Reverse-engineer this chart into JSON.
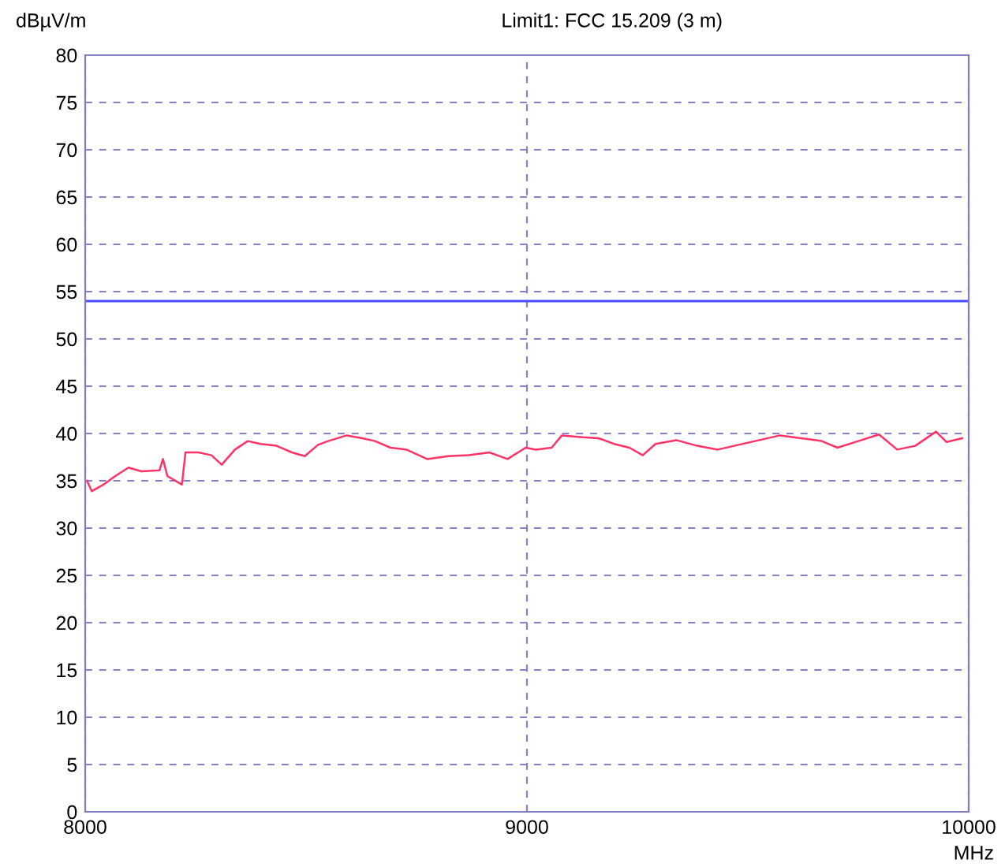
{
  "chart_data": {
    "type": "line",
    "xlabel": "MHz",
    "ylabel": "dBµV/m",
    "annotations": [
      "Limit1: FCC 15.209 (3 m)"
    ],
    "xlim": [
      8000,
      10000
    ],
    "xticks": [
      8000,
      9000,
      10000
    ],
    "ylim": [
      0,
      80
    ],
    "yticks": [
      0,
      5,
      10,
      15,
      20,
      25,
      30,
      35,
      40,
      45,
      50,
      55,
      60,
      65,
      70,
      75,
      80
    ],
    "grid": true,
    "line_style": "solid",
    "marker": "none",
    "ref_lines": [
      {
        "axis": "y",
        "value": 54,
        "color": "#4a4aff",
        "line_style": "solid"
      }
    ],
    "series": [
      {
        "color": "#ff3366",
        "x": [
          8004,
          8015,
          8045,
          8068,
          8098,
          8127,
          8168,
          8176,
          8186,
          8219,
          8227,
          8256,
          8286,
          8309,
          8339,
          8368,
          8397,
          8433,
          8468,
          8497,
          8527,
          8550,
          8592,
          8627,
          8656,
          8691,
          8727,
          8774,
          8821,
          8868,
          8915,
          8956,
          8997,
          9020,
          9056,
          9079,
          9126,
          9162,
          9197,
          9232,
          9262,
          9291,
          9338,
          9385,
          9432,
          9479,
          9526,
          9573,
          9620,
          9667,
          9703,
          9750,
          9797,
          9838,
          9879,
          9926,
          9950,
          9985
        ],
        "values": [
          35,
          33.9,
          34.7,
          35.5,
          36.4,
          36,
          36.1,
          37.3,
          35.5,
          34.6,
          38,
          38,
          37.7,
          36.7,
          38.3,
          39.2,
          38.9,
          38.7,
          38,
          37.6,
          38.8,
          39.2,
          39.8,
          39.5,
          39.2,
          38.5,
          38.3,
          37.3,
          37.6,
          37.7,
          38,
          37.3,
          38.5,
          38.3,
          38.5,
          39.8,
          39.6,
          39.5,
          38.9,
          38.5,
          37.7,
          38.9,
          39.3,
          38.7,
          38.3,
          38.8,
          39.3,
          39.8,
          39.5,
          39.2,
          38.5,
          39.2,
          39.9,
          38.3,
          38.7,
          40.2,
          39.1,
          39.5
        ]
      }
    ]
  }
}
